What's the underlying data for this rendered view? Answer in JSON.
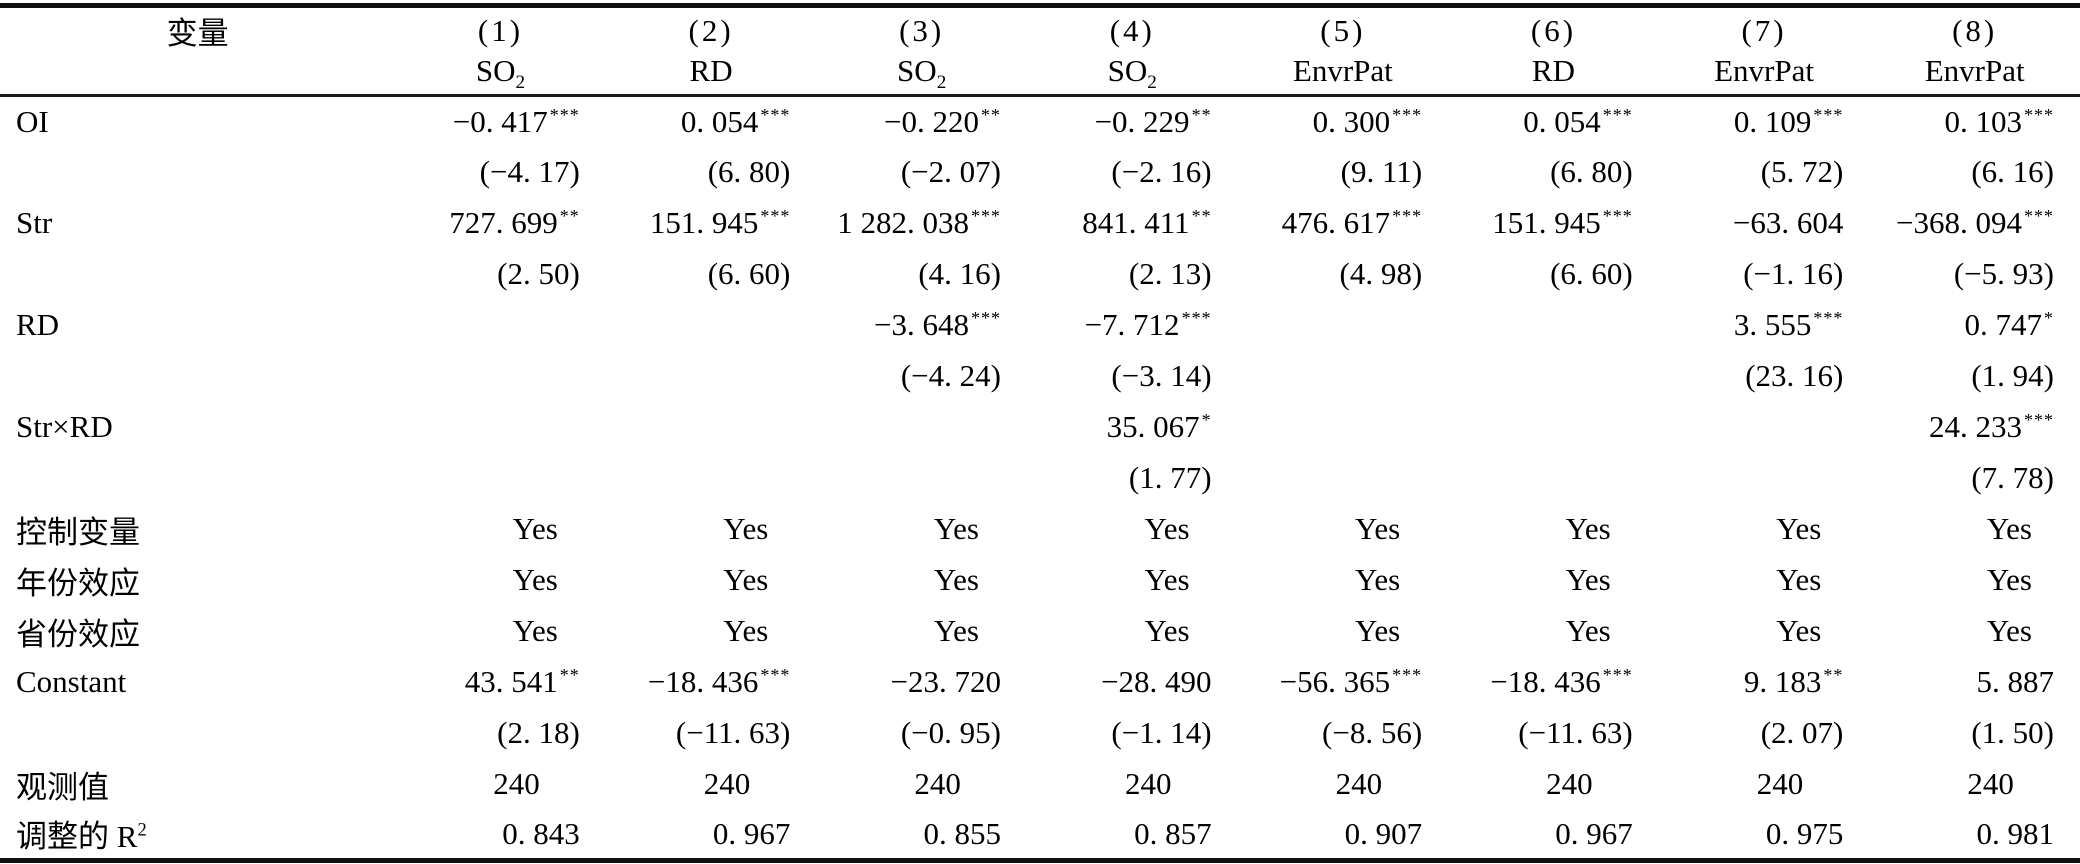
{
  "table": {
    "header": {
      "variable_label": "变量",
      "columns": [
        {
          "num": "(1)",
          "dep_main": "SO",
          "dep_sub": "2"
        },
        {
          "num": "(2)",
          "dep_main": "RD",
          "dep_sub": ""
        },
        {
          "num": "(3)",
          "dep_main": "SO",
          "dep_sub": "2"
        },
        {
          "num": "(4)",
          "dep_main": "SO",
          "dep_sub": "2"
        },
        {
          "num": "(5)",
          "dep_main": "EnvrPat",
          "dep_sub": ""
        },
        {
          "num": "(6)",
          "dep_main": "RD",
          "dep_sub": ""
        },
        {
          "num": "(7)",
          "dep_main": "EnvrPat",
          "dep_sub": ""
        },
        {
          "num": "(8)",
          "dep_main": "EnvrPat",
          "dep_sub": ""
        }
      ]
    },
    "rows": [
      {
        "label": "OI",
        "type": "coef",
        "cells": [
          {
            "v": "−0. 417",
            "s": "***"
          },
          {
            "v": "0. 054",
            "s": "***"
          },
          {
            "v": "−0. 220",
            "s": "**"
          },
          {
            "v": "−0. 229",
            "s": "**"
          },
          {
            "v": "0. 300",
            "s": "***"
          },
          {
            "v": "0. 054",
            "s": "***"
          },
          {
            "v": "0. 109",
            "s": "***"
          },
          {
            "v": "0. 103",
            "s": "***"
          }
        ]
      },
      {
        "label": "",
        "type": "tstat",
        "cells": [
          {
            "v": "(−4. 17)"
          },
          {
            "v": "(6. 80)"
          },
          {
            "v": "(−2. 07)"
          },
          {
            "v": "(−2. 16)"
          },
          {
            "v": "(9. 11)"
          },
          {
            "v": "(6. 80)"
          },
          {
            "v": "(5. 72)"
          },
          {
            "v": "(6. 16)"
          }
        ]
      },
      {
        "label": "Str",
        "type": "coef",
        "cells": [
          {
            "v": "727. 699",
            "s": "**"
          },
          {
            "v": "151. 945",
            "s": "***"
          },
          {
            "v": "1 282. 038",
            "s": "***"
          },
          {
            "v": "841. 411",
            "s": "**"
          },
          {
            "v": "476. 617",
            "s": "***"
          },
          {
            "v": "151. 945",
            "s": "***"
          },
          {
            "v": "−63. 604"
          },
          {
            "v": "−368. 094",
            "s": "***"
          }
        ]
      },
      {
        "label": "",
        "type": "tstat",
        "cells": [
          {
            "v": "(2. 50)"
          },
          {
            "v": "(6. 60)"
          },
          {
            "v": "(4. 16)"
          },
          {
            "v": "(2. 13)"
          },
          {
            "v": "(4. 98)"
          },
          {
            "v": "(6. 60)"
          },
          {
            "v": "(−1. 16)"
          },
          {
            "v": "(−5. 93)"
          }
        ]
      },
      {
        "label": "RD",
        "type": "coef",
        "cells": [
          null,
          null,
          {
            "v": "−3. 648",
            "s": "***"
          },
          {
            "v": "−7. 712",
            "s": "***"
          },
          null,
          null,
          {
            "v": "3. 555",
            "s": "***"
          },
          {
            "v": "0. 747",
            "s": "*"
          }
        ]
      },
      {
        "label": "",
        "type": "tstat",
        "cells": [
          null,
          null,
          {
            "v": "(−4. 24)"
          },
          {
            "v": "(−3. 14)"
          },
          null,
          null,
          {
            "v": "(23. 16)"
          },
          {
            "v": "(1. 94)"
          }
        ]
      },
      {
        "label": "Str×RD",
        "type": "coef",
        "cells": [
          null,
          null,
          null,
          {
            "v": "35. 067",
            "s": "*"
          },
          null,
          null,
          null,
          {
            "v": "24. 233",
            "s": "***"
          }
        ]
      },
      {
        "label": "",
        "type": "tstat",
        "cells": [
          null,
          null,
          null,
          {
            "v": "(1. 77)"
          },
          null,
          null,
          null,
          {
            "v": "(7. 78)"
          }
        ]
      },
      {
        "label": "控制变量",
        "type": "yes",
        "cells": [
          {
            "v": "Yes"
          },
          {
            "v": "Yes"
          },
          {
            "v": "Yes"
          },
          {
            "v": "Yes"
          },
          {
            "v": "Yes"
          },
          {
            "v": "Yes"
          },
          {
            "v": "Yes"
          },
          {
            "v": "Yes"
          }
        ]
      },
      {
        "label": "年份效应",
        "type": "yes",
        "cells": [
          {
            "v": "Yes"
          },
          {
            "v": "Yes"
          },
          {
            "v": "Yes"
          },
          {
            "v": "Yes"
          },
          {
            "v": "Yes"
          },
          {
            "v": "Yes"
          },
          {
            "v": "Yes"
          },
          {
            "v": "Yes"
          }
        ]
      },
      {
        "label": "省份效应",
        "type": "yes",
        "cells": [
          {
            "v": "Yes"
          },
          {
            "v": "Yes"
          },
          {
            "v": "Yes"
          },
          {
            "v": "Yes"
          },
          {
            "v": "Yes"
          },
          {
            "v": "Yes"
          },
          {
            "v": "Yes"
          },
          {
            "v": "Yes"
          }
        ]
      },
      {
        "label": "Constant",
        "type": "coef",
        "cells": [
          {
            "v": "43. 541",
            "s": "**"
          },
          {
            "v": "−18. 436",
            "s": "***"
          },
          {
            "v": "−23. 720"
          },
          {
            "v": "−28. 490"
          },
          {
            "v": "−56. 365",
            "s": "***"
          },
          {
            "v": "−18. 436",
            "s": "***"
          },
          {
            "v": "9. 183",
            "s": "**"
          },
          {
            "v": "5. 887"
          }
        ]
      },
      {
        "label": "",
        "type": "tstat",
        "cells": [
          {
            "v": "(2. 18)"
          },
          {
            "v": "(−11. 63)"
          },
          {
            "v": "(−0. 95)"
          },
          {
            "v": "(−1. 14)"
          },
          {
            "v": "(−8. 56)"
          },
          {
            "v": "(−11. 63)"
          },
          {
            "v": "(2. 07)"
          },
          {
            "v": "(1. 50)"
          }
        ]
      },
      {
        "label": "观测值",
        "type": "obs",
        "cells": [
          {
            "v": "240"
          },
          {
            "v": "240"
          },
          {
            "v": "240"
          },
          {
            "v": "240"
          },
          {
            "v": "240"
          },
          {
            "v": "240"
          },
          {
            "v": "240"
          },
          {
            "v": "240"
          }
        ]
      },
      {
        "label_main": "调整的 R",
        "label_sup": "2",
        "type": "r2",
        "cells": [
          {
            "v": "0. 843"
          },
          {
            "v": "0. 967"
          },
          {
            "v": "0. 855"
          },
          {
            "v": "0. 857"
          },
          {
            "v": "0. 907"
          },
          {
            "v": "0. 967"
          },
          {
            "v": "0. 975"
          },
          {
            "v": "0. 981"
          }
        ]
      }
    ]
  }
}
